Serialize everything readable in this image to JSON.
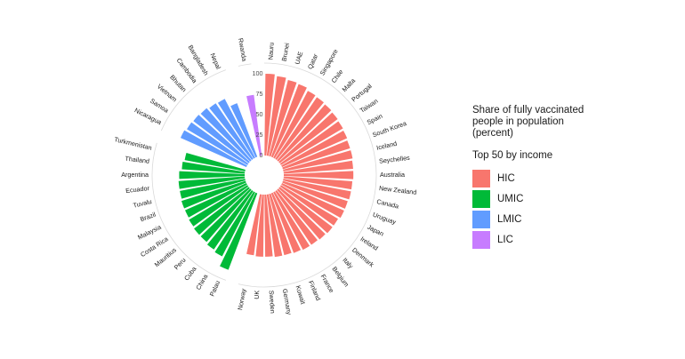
{
  "chart_data": {
    "type": "bar",
    "subtype": "circular-bar",
    "legend": {
      "title": "Share of fully vaccinated people in population (percent)",
      "subtitle": "Top 50 by income",
      "position": "right"
    },
    "groups": [
      {
        "name": "HIC",
        "color": "#F8766D"
      },
      {
        "name": "UMIC",
        "color": "#00BA38"
      },
      {
        "name": "LMIC",
        "color": "#619CFF"
      },
      {
        "name": "LIC",
        "color": "#C77CFF"
      }
    ],
    "categories": [
      "Nauru",
      "Brunei",
      "UAE",
      "Qatar",
      "Singapore",
      "Chile",
      "Malta",
      "Portugal",
      "Taiwan",
      "Spain",
      "South Korea",
      "Iceland",
      "Seychelles",
      "Australia",
      "New Zealand",
      "Canada",
      "Uruguay",
      "Japan",
      "Ireland",
      "Denmark",
      "Italy",
      "Belgium",
      "France",
      "Finland",
      "Kuwait",
      "Germany",
      "Sweden",
      "UK",
      "Norway",
      "Palau",
      "China",
      "Cuba",
      "Peru",
      "Mauritius",
      "Costa Rica",
      "Malaysia",
      "Brazil",
      "Tuvalu",
      "Ecuador",
      "Argentina",
      "Thailand",
      "Turkmenistan",
      "Nicaragua",
      "Samoa",
      "Vietnam",
      "Bhutan",
      "Cambodia",
      "Bangladesh",
      "Nepal",
      "Rwanda"
    ],
    "income_group": [
      "HIC",
      "HIC",
      "HIC",
      "HIC",
      "HIC",
      "HIC",
      "HIC",
      "HIC",
      "HIC",
      "HIC",
      "HIC",
      "HIC",
      "HIC",
      "HIC",
      "HIC",
      "HIC",
      "HIC",
      "HIC",
      "HIC",
      "HIC",
      "HIC",
      "HIC",
      "HIC",
      "HIC",
      "HIC",
      "HIC",
      "HIC",
      "HIC",
      "HIC",
      "UMIC",
      "UMIC",
      "UMIC",
      "UMIC",
      "UMIC",
      "UMIC",
      "UMIC",
      "UMIC",
      "UMIC",
      "UMIC",
      "UMIC",
      "UMIC",
      "UMIC",
      "LMIC",
      "LMIC",
      "LMIC",
      "LMIC",
      "LMIC",
      "LMIC",
      "LMIC",
      "LIC"
    ],
    "values": [
      100,
      98,
      96,
      95,
      92,
      91,
      90,
      89,
      88,
      87,
      86,
      86,
      85,
      85,
      84,
      84,
      83,
      83,
      81,
      81,
      80,
      79,
      79,
      78,
      77,
      77,
      76,
      76,
      75,
      100,
      88,
      86,
      84,
      84,
      83,
      82,
      82,
      81,
      81,
      80,
      77,
      75,
      88,
      86,
      85,
      84,
      82,
      81,
      70,
      75
    ],
    "y_ticks": [
      "0",
      "25",
      "50",
      "75",
      "100"
    ],
    "ylim": [
      0,
      100
    ],
    "grid": false
  }
}
